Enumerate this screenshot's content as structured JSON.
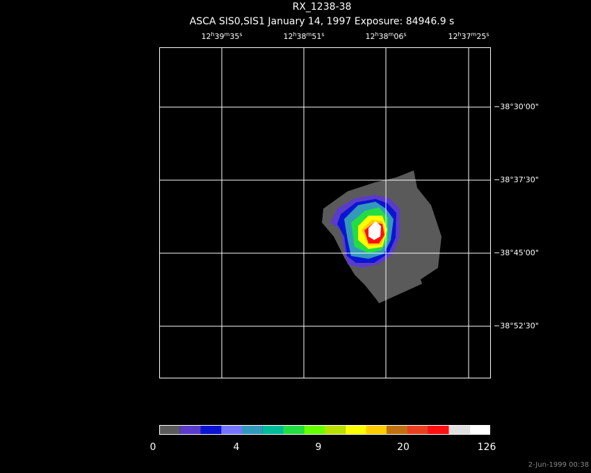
{
  "title": "RX_1238-38",
  "subtitle": "ASCA SIS0,SIS1 January 14, 1997 Exposure: 84946.9 s",
  "ra_labels": [
    [
      "12",
      "h",
      "39",
      "m",
      "35",
      "s"
    ],
    [
      "12",
      "h",
      "38",
      "m",
      "51",
      "s"
    ],
    [
      "12",
      "h",
      "38",
      "m",
      "06",
      "s"
    ],
    [
      "12",
      "h",
      "37",
      "m",
      "25",
      "s"
    ]
  ],
  "dec_labels": [
    "−38°30'00\"",
    "−38°37'30\"",
    "−38°45'00\"",
    "−38°52'30\""
  ],
  "colorbar": {
    "colors": [
      "#5a5a5a",
      "#5a3cc8",
      "#0a14d2",
      "#7474ff",
      "#3399bb",
      "#00bb99",
      "#22dd44",
      "#66ff00",
      "#b8e000",
      "#ffff00",
      "#ffcc00",
      "#c07010",
      "#e84020",
      "#ff1010",
      "#e0e0e0",
      "#ffffff"
    ],
    "labels": [
      "0",
      "4",
      "9",
      "20",
      "126"
    ]
  },
  "timestamp": "2-Jun-1999 00:38"
}
